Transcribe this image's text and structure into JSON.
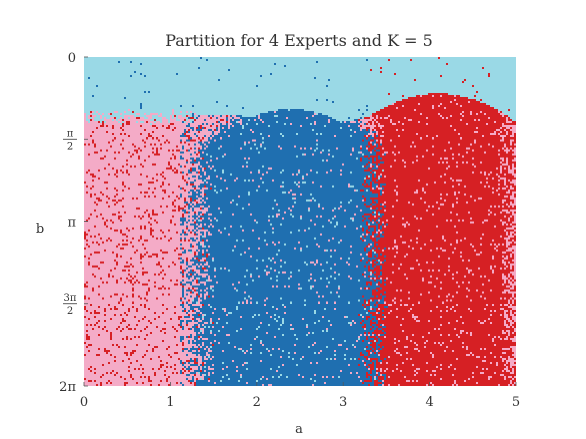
{
  "chart_data": {
    "type": "heatmap",
    "title": "Partition for 4 Experts and K = 5",
    "xlabel": "a",
    "ylabel": "b",
    "xlim": [
      0,
      5
    ],
    "ylim": [
      0,
      6.2832
    ],
    "y_inverted": true,
    "x_ticks": [
      {
        "value": 0,
        "label": "0"
      },
      {
        "value": 1,
        "label": "1"
      },
      {
        "value": 2,
        "label": "2"
      },
      {
        "value": 3,
        "label": "3"
      },
      {
        "value": 4,
        "label": "4"
      },
      {
        "value": 5,
        "label": "5"
      }
    ],
    "y_ticks": [
      {
        "value": 0,
        "label": "0",
        "frac": null
      },
      {
        "value": 1.5708,
        "label": "",
        "frac": [
          "π",
          "2"
        ]
      },
      {
        "value": 3.1416,
        "label": "π",
        "frac": null
      },
      {
        "value": 4.7124,
        "label": "",
        "frac": [
          "3π",
          "2"
        ]
      },
      {
        "value": 6.2832,
        "label": "2π",
        "frac": null
      }
    ],
    "grid": false,
    "legend": "none",
    "colors": {
      "expert_1": "#9ad9e6",
      "expert_2": "#1f6fb0",
      "expert_3": "#d62024",
      "expert_4": "#f4abc7"
    },
    "regions": [
      {
        "color": "expert_1",
        "a_range": [
          0,
          5
        ],
        "b_range": [
          0,
          1.2
        ],
        "note": "top band"
      },
      {
        "color": "expert_4",
        "a_range": [
          0,
          1.3
        ],
        "b_range": [
          1.2,
          6.2832
        ]
      },
      {
        "color": "expert_2",
        "a_range": [
          1.3,
          3.35
        ],
        "b_range": [
          1.0,
          6.2832
        ],
        "peak_a": 2.4
      },
      {
        "color": "expert_3",
        "a_range": [
          3.35,
          5
        ],
        "b_range": [
          0.7,
          6.2832
        ],
        "peak_a": 4.1
      }
    ]
  }
}
